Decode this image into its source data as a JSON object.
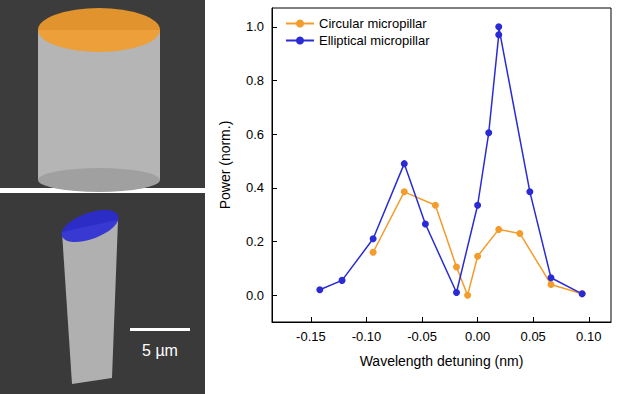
{
  "chart_data": {
    "type": "line",
    "x_label": "Wavelength detuning (nm)",
    "y_label": "Power (norm.)",
    "annotations": [
      "5 µm"
    ],
    "xlim": [
      -0.185,
      0.12
    ],
    "xticks": [
      -0.15,
      {
        "value": -0.1,
        "label": "-0.10"
      },
      -0.05,
      {
        "value": 0,
        "label": "0.00"
      },
      0.05,
      {
        "value": 0.1,
        "label": "0.10"
      }
    ],
    "ylim": [
      -0.1,
      1.07
    ],
    "yticks": [
      {
        "value": 0,
        "label": "0.0"
      },
      0.2,
      0.4,
      0.6,
      0.8,
      {
        "value": 1,
        "label": "1.0"
      }
    ],
    "grid": false,
    "legend": "upper left",
    "marker": "circle",
    "series": [
      {
        "name": "Circular micropillar",
        "color": "#f39c2b",
        "x": [
          -0.094,
          -0.066,
          -0.038,
          -0.019,
          -0.009,
          0.0,
          0.019,
          0.038,
          0.066,
          0.094
        ],
        "values": [
          0.16,
          0.385,
          0.335,
          0.105,
          0.0,
          0.145,
          0.245,
          0.23,
          0.04,
          0.005
        ]
      },
      {
        "name": "Elliptical micropillar",
        "color": "#2b2bd6",
        "x": [
          -0.142,
          -0.122,
          -0.094,
          -0.066,
          -0.047,
          -0.019,
          0.0,
          0.01,
          0.019,
          0.019,
          0.047,
          0.066,
          0.094
        ],
        "values": [
          0.02,
          0.055,
          0.21,
          0.49,
          0.265,
          0.01,
          0.335,
          0.605,
          0.97,
          1.0,
          0.385,
          0.065,
          0.005
        ]
      }
    ]
  }
}
